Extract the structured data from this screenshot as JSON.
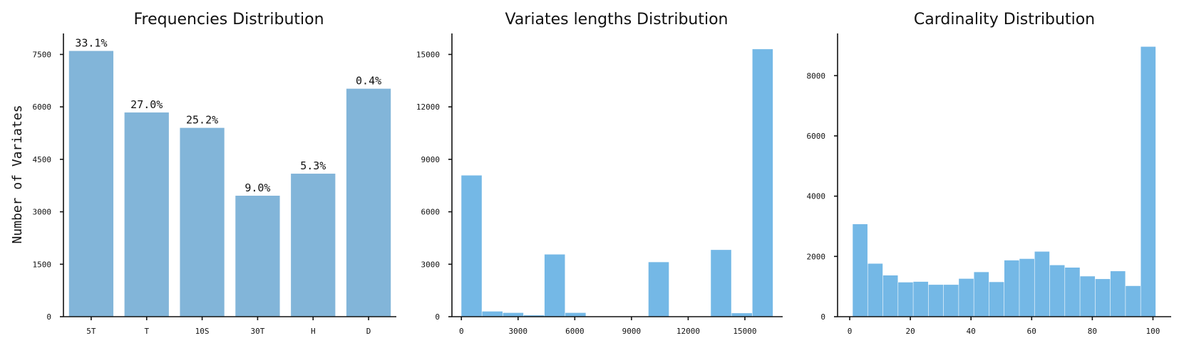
{
  "chart_data": [
    {
      "type": "bar",
      "title": "Frequencies Distribution",
      "ylabel": "Number of Variates",
      "xlabel": "",
      "categories": [
        "5T",
        "T",
        "10S",
        "30T",
        "H",
        "D"
      ],
      "values": [
        7600,
        5840,
        5400,
        3460,
        4090,
        6520
      ],
      "data_labels": [
        "33.1%",
        "27.0%",
        "25.2%",
        "9.0%",
        "5.3%",
        "0.4%"
      ],
      "ylim": [
        0,
        8100
      ],
      "yticks": [
        0,
        1500,
        3000,
        4500,
        6000,
        7500
      ],
      "color": "#82b5d9"
    },
    {
      "type": "histogram",
      "title": "Variates lengths Distribution",
      "xlabel": "",
      "ylabel": "",
      "bins": [
        {
          "x0": 0,
          "x1": 1100,
          "count": 8080
        },
        {
          "x0": 1100,
          "x1": 2200,
          "count": 300
        },
        {
          "x0": 2200,
          "x1": 3300,
          "count": 220
        },
        {
          "x0": 3300,
          "x1": 4400,
          "count": 80
        },
        {
          "x0": 4400,
          "x1": 5500,
          "count": 3560
        },
        {
          "x0": 5500,
          "x1": 6600,
          "count": 220
        },
        {
          "x0": 6600,
          "x1": 7700,
          "count": 0
        },
        {
          "x0": 7700,
          "x1": 8800,
          "count": 0
        },
        {
          "x0": 8800,
          "x1": 9900,
          "count": 0
        },
        {
          "x0": 9900,
          "x1": 11000,
          "count": 3120
        },
        {
          "x0": 11000,
          "x1": 12100,
          "count": 0
        },
        {
          "x0": 12100,
          "x1": 13200,
          "count": 0
        },
        {
          "x0": 13200,
          "x1": 14300,
          "count": 3820
        },
        {
          "x0": 14300,
          "x1": 15400,
          "count": 200
        },
        {
          "x0": 15400,
          "x1": 16500,
          "count": 15300
        }
      ],
      "xlim": [
        -500,
        17000
      ],
      "ylim": [
        0,
        16200
      ],
      "xticks": [
        0,
        3000,
        6000,
        9000,
        12000,
        15000
      ],
      "yticks": [
        0,
        3000,
        6000,
        9000,
        12000,
        15000
      ],
      "color": "#74b8e6"
    },
    {
      "type": "histogram",
      "title": "Cardinality Distribution",
      "xlabel": "",
      "ylabel": "",
      "bins": [
        {
          "x0": 1,
          "x1": 6,
          "count": 3070
        },
        {
          "x0": 6,
          "x1": 11,
          "count": 1760
        },
        {
          "x0": 11,
          "x1": 16,
          "count": 1370
        },
        {
          "x0": 16,
          "x1": 21,
          "count": 1140
        },
        {
          "x0": 21,
          "x1": 26,
          "count": 1160
        },
        {
          "x0": 26,
          "x1": 31,
          "count": 1060
        },
        {
          "x0": 31,
          "x1": 36,
          "count": 1060
        },
        {
          "x0": 36,
          "x1": 41,
          "count": 1260
        },
        {
          "x0": 41,
          "x1": 46,
          "count": 1480
        },
        {
          "x0": 46,
          "x1": 51,
          "count": 1150
        },
        {
          "x0": 51,
          "x1": 56,
          "count": 1870
        },
        {
          "x0": 56,
          "x1": 61,
          "count": 1920
        },
        {
          "x0": 61,
          "x1": 66,
          "count": 2160
        },
        {
          "x0": 66,
          "x1": 71,
          "count": 1710
        },
        {
          "x0": 71,
          "x1": 76,
          "count": 1630
        },
        {
          "x0": 76,
          "x1": 81,
          "count": 1340
        },
        {
          "x0": 81,
          "x1": 86,
          "count": 1250
        },
        {
          "x0": 86,
          "x1": 91,
          "count": 1510
        },
        {
          "x0": 91,
          "x1": 96,
          "count": 1020
        },
        {
          "x0": 96,
          "x1": 101,
          "count": 8960
        }
      ],
      "xlim": [
        -4,
        106
      ],
      "ylim": [
        0,
        9400
      ],
      "xticks": [
        0,
        20,
        40,
        60,
        80,
        100
      ],
      "yticks": [
        0,
        2000,
        4000,
        6000,
        8000
      ],
      "color": "#74b8e6"
    }
  ]
}
